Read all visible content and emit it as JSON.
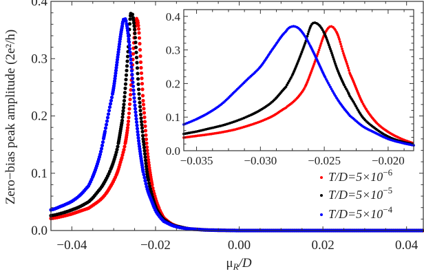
{
  "chart_data": [
    {
      "type": "scatter",
      "role": "main",
      "xlabel": "μR/D",
      "xlabel_main": "μ",
      "xlabel_sub": "R",
      "xlabel_tail": "/D",
      "ylabel": "Zero−bias peak amplitude (2e²/h)",
      "xlim": [
        -0.045,
        0.044
      ],
      "ylim": [
        0,
        0.4
      ],
      "xticks": [
        -0.04,
        -0.02,
        0.0,
        0.02,
        0.04
      ],
      "xtick_labels": [
        "−0.04",
        "−0.02",
        "0.00",
        "0.02",
        "0.04"
      ],
      "yticks": [
        0.0,
        0.1,
        0.2,
        0.3,
        0.4
      ],
      "ytick_labels": [
        "0.0",
        "0.1",
        "0.2",
        "0.3",
        "0.4"
      ],
      "grid": false,
      "legend_placement": "bottom-right",
      "x": [
        -0.045,
        -0.042,
        -0.04,
        -0.038,
        -0.036,
        -0.035,
        -0.034,
        -0.033,
        -0.032,
        -0.031,
        -0.03,
        -0.029,
        -0.028,
        -0.0275,
        -0.027,
        -0.0265,
        -0.026,
        -0.0255,
        -0.025,
        -0.0245,
        -0.024,
        -0.0235,
        -0.023,
        -0.022,
        -0.021,
        -0.02,
        -0.019,
        -0.018,
        -0.016,
        -0.014,
        -0.012,
        -0.01,
        -0.008,
        -0.005,
        0,
        0.01,
        0.02,
        0.03,
        0.044
      ],
      "series": [
        {
          "name": "T/D=5×10^-6",
          "legend_base": "T/D=5×10",
          "legend_exp": "−6",
          "color": "#ff0000",
          "values": [
            0.021,
            0.025,
            0.029,
            0.034,
            0.039,
            0.044,
            0.049,
            0.055,
            0.063,
            0.074,
            0.087,
            0.104,
            0.128,
            0.143,
            0.162,
            0.19,
            0.237,
            0.29,
            0.345,
            0.37,
            0.35,
            0.29,
            0.23,
            0.142,
            0.087,
            0.056,
            0.036,
            0.022,
            0.011,
            0.006,
            0.003,
            0.002,
            0.001,
            0.0005,
            0,
            0,
            0,
            0,
            0
          ]
        },
        {
          "name": "T/D=5×10^-5",
          "legend_base": "T/D=5×10",
          "legend_exp": "−5",
          "color": "#000000",
          "values": [
            0.026,
            0.031,
            0.036,
            0.042,
            0.05,
            0.057,
            0.066,
            0.075,
            0.087,
            0.102,
            0.121,
            0.148,
            0.19,
            0.225,
            0.27,
            0.32,
            0.375,
            0.377,
            0.35,
            0.3,
            0.244,
            0.2,
            0.162,
            0.1,
            0.066,
            0.042,
            0.028,
            0.019,
            0.01,
            0.006,
            0.003,
            0.002,
            0.001,
            0.0005,
            0,
            0,
            0,
            0,
            0
          ]
        },
        {
          "name": "T/D=5×10^-4",
          "legend_base": "T/D=5×10",
          "legend_exp": "−4",
          "color": "#0000ff",
          "values": [
            0.036,
            0.044,
            0.051,
            0.062,
            0.078,
            0.094,
            0.114,
            0.14,
            0.176,
            0.213,
            0.25,
            0.305,
            0.355,
            0.37,
            0.364,
            0.34,
            0.305,
            0.265,
            0.224,
            0.188,
            0.155,
            0.128,
            0.104,
            0.073,
            0.053,
            0.035,
            0.024,
            0.016,
            0.009,
            0.005,
            0.003,
            0.002,
            0.001,
            0.0005,
            0,
            0,
            0,
            0,
            0
          ]
        }
      ]
    },
    {
      "type": "scatter",
      "role": "inset",
      "xlim": [
        -0.036,
        -0.018
      ],
      "ylim": [
        0,
        0.42
      ],
      "xticks": [
        -0.035,
        -0.03,
        -0.025,
        -0.02
      ],
      "xtick_labels": [
        "−0.035",
        "−0.030",
        "−0.025",
        "−0.020"
      ],
      "yticks": [
        0.0,
        0.1,
        0.2,
        0.3,
        0.4
      ],
      "ytick_labels": [
        "0.0",
        "0.1",
        "0.2",
        "0.3",
        "0.4"
      ],
      "grid": false,
      "same_data_as": "main"
    }
  ]
}
